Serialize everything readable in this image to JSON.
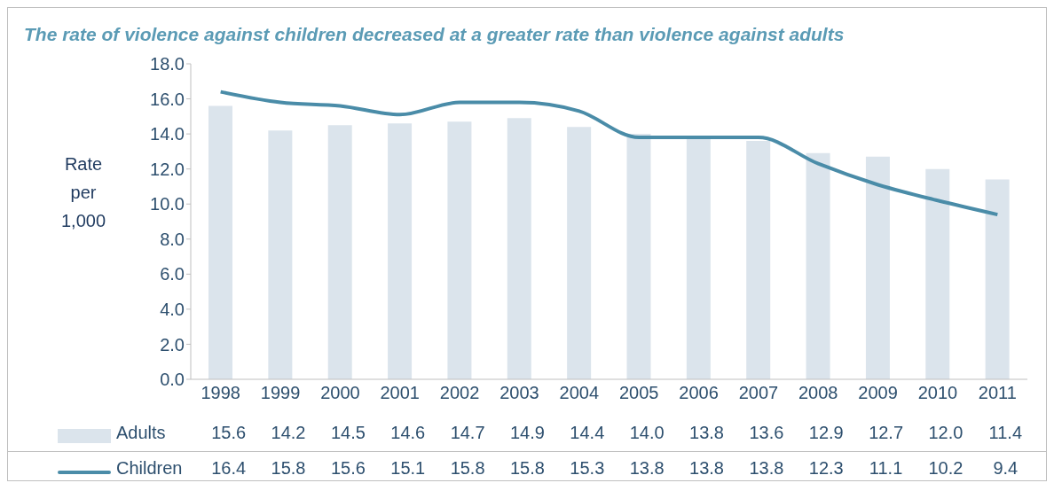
{
  "chart_data": {
    "type": "bar",
    "title": "The rate of violence against children decreased at a greater rate than violence against adults",
    "ylabel": "Rate per 1,000",
    "categories": [
      "1998",
      "1999",
      "2000",
      "2001",
      "2002",
      "2003",
      "2004",
      "2005",
      "2006",
      "2007",
      "2008",
      "2009",
      "2010",
      "2011"
    ],
    "series": [
      {
        "name": "Adults",
        "color": "#dbe4ec",
        "values": [
          15.6,
          14.2,
          14.5,
          14.6,
          14.7,
          14.9,
          14.4,
          14.0,
          13.8,
          13.6,
          12.9,
          12.7,
          12.0,
          11.4
        ],
        "value_labels": [
          "15.6",
          "14.2",
          "14.5",
          "14.6",
          "14.7",
          "14.9",
          "14.4",
          "14.0",
          "13.8",
          "13.6",
          "12.9",
          "12.7",
          "12.0",
          "11.4"
        ]
      },
      {
        "name": "Children",
        "type": "line",
        "color": "#4a8ca8",
        "values": [
          16.4,
          15.8,
          15.6,
          15.1,
          15.8,
          15.8,
          15.3,
          13.8,
          13.8,
          13.8,
          12.3,
          11.1,
          10.2,
          9.4
        ],
        "value_labels": [
          "16.4",
          "15.8",
          "15.6",
          "15.1",
          "15.8",
          "15.8",
          "15.3",
          "13.8",
          "13.8",
          "13.8",
          "12.3",
          "11.1",
          "10.2",
          "9.4"
        ]
      }
    ],
    "ylim": [
      0,
      18
    ],
    "yticks": [
      {
        "value": 0,
        "label": "0.0"
      },
      {
        "value": 2,
        "label": "2.0"
      },
      {
        "value": 4,
        "label": "4.0"
      },
      {
        "value": 6,
        "label": "6.0"
      },
      {
        "value": 8,
        "label": "8.0"
      },
      {
        "value": 10,
        "label": "10.0"
      },
      {
        "value": 12,
        "label": "12.0"
      },
      {
        "value": 14,
        "label": "14.0"
      },
      {
        "value": 16,
        "label": "16.0"
      },
      {
        "value": 18,
        "label": "18.0"
      }
    ],
    "grid": false,
    "legend": "bottom",
    "marker": "none",
    "line_style": "solid"
  }
}
